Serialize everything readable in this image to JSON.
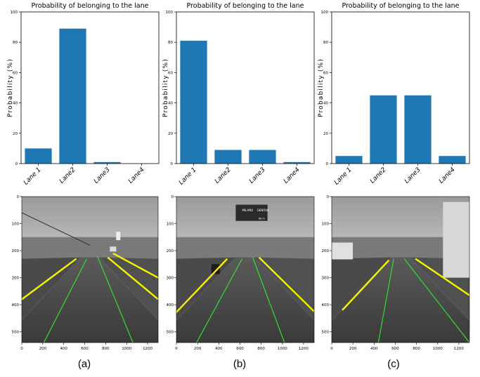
{
  "chart_data": [
    {
      "type": "bar",
      "title": "Probability of belonging to the lane",
      "xlabel": "",
      "ylabel": "Probability (%)",
      "ylim": [
        0,
        100
      ],
      "yticks": [
        0,
        20,
        40,
        60,
        80,
        100
      ],
      "categories": [
        "Lane 1",
        "Lane2",
        "Lane3",
        "Lane4"
      ],
      "values": [
        10,
        89,
        1,
        0
      ],
      "color": "#1f77b4"
    },
    {
      "type": "bar",
      "title": "Probability of belonging to the lane",
      "xlabel": "",
      "ylabel": "Probability (%)",
      "ylim": [
        0,
        100
      ],
      "yticks": [
        0,
        20,
        40,
        60,
        80,
        100
      ],
      "categories": [
        "Lane 1",
        "Lane2",
        "Lane3",
        "Lane4"
      ],
      "values": [
        81,
        9,
        9,
        1
      ],
      "color": "#1f77b4"
    },
    {
      "type": "bar",
      "title": "Probability of belonging to the lane",
      "xlabel": "",
      "ylabel": "Probability (%)",
      "ylim": [
        0,
        100
      ],
      "yticks": [
        0,
        20,
        40,
        60,
        80,
        100
      ],
      "categories": [
        "Lane 1",
        "Lane2",
        "Lane3",
        "Lane4"
      ],
      "values": [
        5,
        45,
        45,
        5
      ],
      "color": "#1f77b4"
    }
  ],
  "road_images": {
    "xticks": [
      0,
      200,
      400,
      600,
      800,
      1000,
      1200
    ],
    "yticks": [
      0,
      100,
      200,
      300,
      400,
      500
    ],
    "x_max": 1300,
    "y_max": 540,
    "sign_text": [
      "MILANO",
      "GENOVA",
      "60 m"
    ]
  },
  "captions": [
    "(a)",
    "(b)",
    "(c)"
  ]
}
